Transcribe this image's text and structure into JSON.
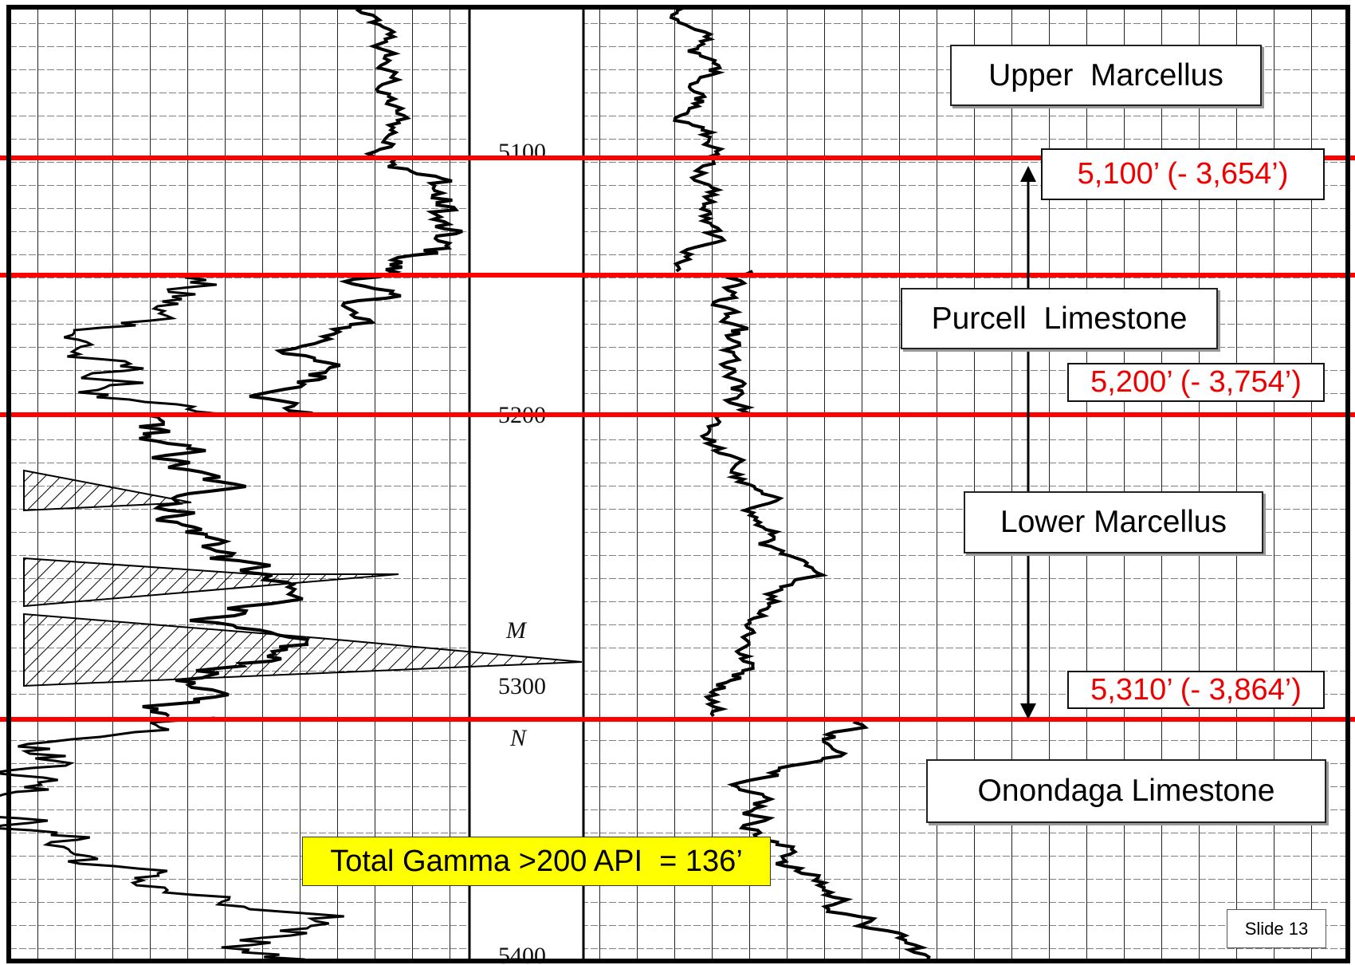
{
  "formations": [
    "Upper  Marcellus",
    "Purcell  Limestone",
    "Lower Marcellus",
    "Onondaga Limestone"
  ],
  "tops": [
    "5,100’ (- 3,654’)",
    "5,200’ (- 3,754’)",
    "5,310’ (- 3,864’)"
  ],
  "note": "Total Gamma >200 API  = 136’",
  "log_depths": [
    "5100",
    "5200",
    "5300",
    "5400"
  ],
  "log_marks": [
    "M",
    "N"
  ],
  "slide": "Slide 13"
}
